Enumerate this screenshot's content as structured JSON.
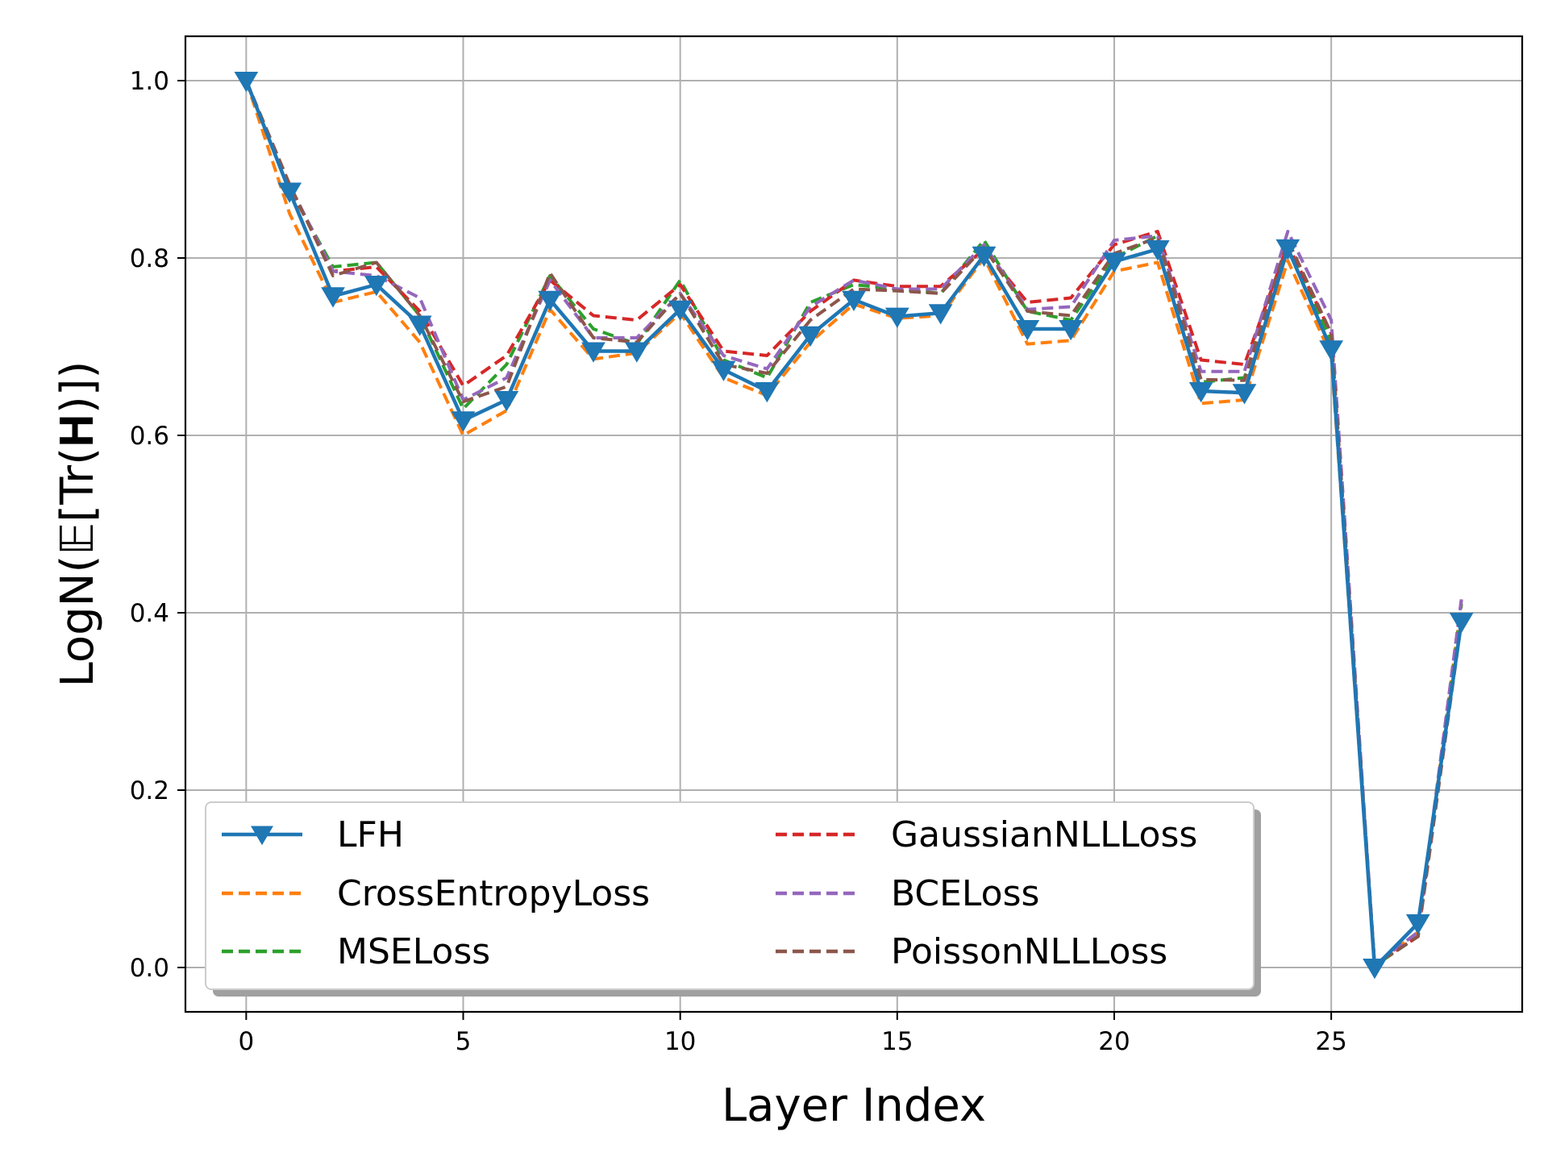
{
  "chart_data": {
    "type": "line",
    "xlabel": "Layer Index",
    "ylabel": "LogN(𝔼[Tr(𝐇)])",
    "xlim": [
      -1.4,
      29.4
    ],
    "ylim": [
      -0.05,
      1.05
    ],
    "xticks": [
      0,
      5,
      10,
      15,
      20,
      25
    ],
    "yticks": [
      0.0,
      0.2,
      0.4,
      0.6,
      0.8,
      1.0
    ],
    "ytick_labels": [
      "0.0",
      "0.2",
      "0.4",
      "0.6",
      "0.8",
      "1.0"
    ],
    "grid": true,
    "legend_position": "lower-left",
    "legend_columns": 2,
    "x": [
      0,
      1,
      2,
      3,
      4,
      5,
      6,
      7,
      8,
      9,
      10,
      11,
      12,
      13,
      14,
      15,
      16,
      17,
      18,
      19,
      20,
      21,
      22,
      23,
      24,
      25,
      26,
      27,
      28
    ],
    "series": [
      {
        "name": "LFH",
        "color": "#1f77b4",
        "style": "solid-triangle-down",
        "values": [
          1.0,
          0.875,
          0.757,
          0.77,
          0.725,
          0.617,
          0.64,
          0.753,
          0.695,
          0.695,
          0.742,
          0.674,
          0.65,
          0.713,
          0.753,
          0.734,
          0.738,
          0.803,
          0.72,
          0.72,
          0.796,
          0.81,
          0.65,
          0.648,
          0.811,
          0.697,
          0.0,
          0.05,
          0.39
        ]
      },
      {
        "name": "CrossEntropyLoss",
        "color": "#ff7f0e",
        "style": "dashed",
        "values": [
          1.0,
          0.85,
          0.75,
          0.762,
          0.705,
          0.6,
          0.628,
          0.742,
          0.686,
          0.693,
          0.738,
          0.665,
          0.645,
          0.705,
          0.748,
          0.732,
          0.735,
          0.8,
          0.703,
          0.707,
          0.785,
          0.795,
          0.636,
          0.64,
          0.797,
          0.69,
          0.002,
          0.04,
          0.41
        ]
      },
      {
        "name": "MSELoss",
        "color": "#2ca02c",
        "style": "dashed",
        "values": [
          1.0,
          0.878,
          0.79,
          0.795,
          0.735,
          0.63,
          0.68,
          0.78,
          0.72,
          0.703,
          0.775,
          0.685,
          0.665,
          0.75,
          0.77,
          0.765,
          0.76,
          0.82,
          0.74,
          0.73,
          0.8,
          0.825,
          0.66,
          0.665,
          0.82,
          0.705,
          0.002,
          0.035,
          0.41
        ]
      },
      {
        "name": "GaussianNLLLoss",
        "color": "#d62728",
        "style": "dashed",
        "values": [
          1.0,
          0.88,
          0.785,
          0.79,
          0.74,
          0.656,
          0.69,
          0.775,
          0.735,
          0.73,
          0.77,
          0.695,
          0.69,
          0.74,
          0.775,
          0.768,
          0.768,
          0.81,
          0.75,
          0.755,
          0.815,
          0.83,
          0.685,
          0.68,
          0.815,
          0.715,
          0.003,
          0.035,
          0.415
        ]
      },
      {
        "name": "BCELoss",
        "color": "#9467bd",
        "style": "dashed",
        "values": [
          1.0,
          0.882,
          0.785,
          0.78,
          0.755,
          0.64,
          0.665,
          0.775,
          0.71,
          0.71,
          0.76,
          0.69,
          0.675,
          0.745,
          0.775,
          0.765,
          0.765,
          0.815,
          0.742,
          0.745,
          0.82,
          0.825,
          0.672,
          0.672,
          0.83,
          0.73,
          0.003,
          0.04,
          0.415
        ]
      },
      {
        "name": "PoissonNLLLoss",
        "color": "#8c564b",
        "style": "dashed",
        "values": [
          1.0,
          0.883,
          0.78,
          0.795,
          0.735,
          0.638,
          0.655,
          0.783,
          0.71,
          0.705,
          0.76,
          0.68,
          0.67,
          0.73,
          0.765,
          0.763,
          0.76,
          0.812,
          0.74,
          0.735,
          0.805,
          0.823,
          0.663,
          0.662,
          0.82,
          0.715,
          0.003,
          0.035,
          0.39
        ]
      }
    ]
  }
}
